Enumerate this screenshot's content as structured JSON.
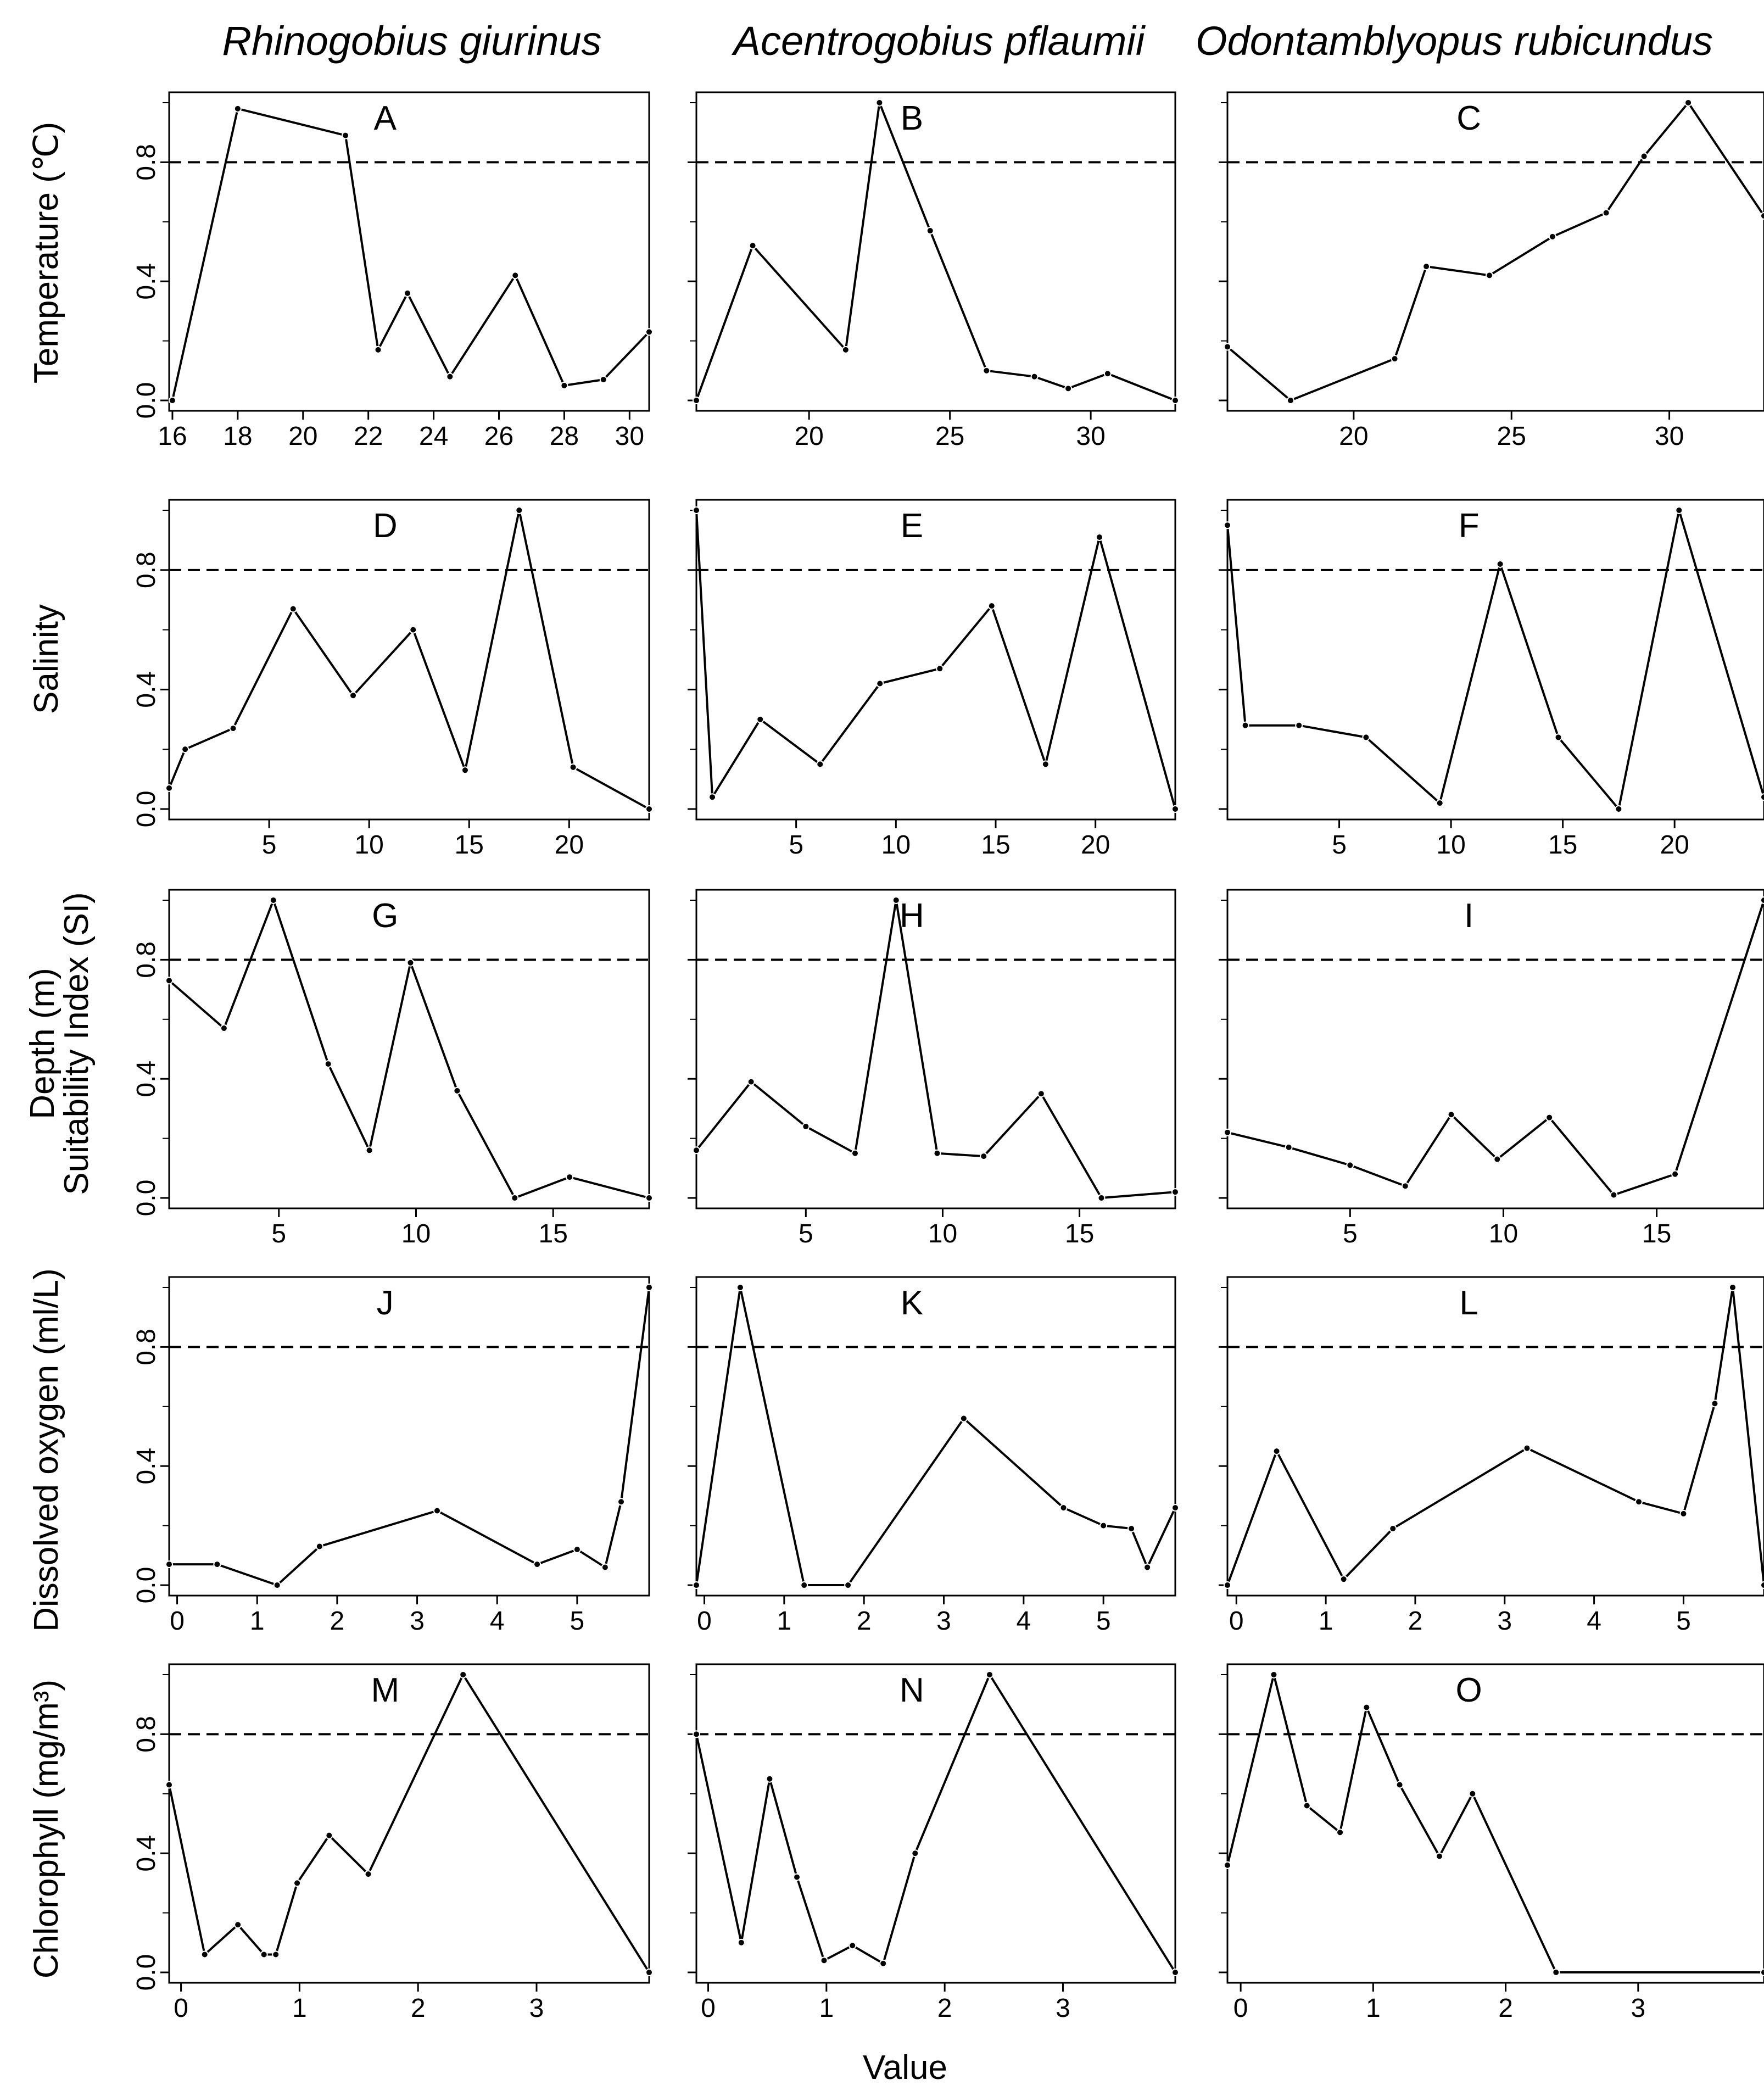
{
  "figure": {
    "column_titles": [
      "Rhinogobius giurinus",
      "Acentrogobius pflaumii",
      "Odontamblyopus rubicundus"
    ],
    "row_labels": [
      "Temperature (℃)",
      "Salinity",
      "Depth (m)",
      "Dissolved oxygen (ml/L)",
      "Chlorophyll (mg/m³)"
    ],
    "shared_ylabel": "Suitability Index (SI)",
    "shared_xlabel": "Value",
    "threshold": 0.8,
    "colors": {
      "line": "#000000",
      "axis": "#000000",
      "background": "#ffffff"
    }
  },
  "chart_data": [
    {
      "type": "line",
      "panel": "A",
      "row": "Temperature (℃)",
      "species": "Rhinogobius giurinus",
      "xlim": [
        15.9,
        30.6
      ],
      "ylim": [
        0,
        1
      ],
      "xticks": [
        16,
        18,
        20,
        22,
        24,
        26,
        28,
        30
      ],
      "yticks": [
        0.0,
        0.4,
        0.8
      ],
      "show_ylabels": true,
      "x": [
        16,
        18,
        21.3,
        22.3,
        23.2,
        24.5,
        26.5,
        28,
        29.2,
        30.6
      ],
      "y": [
        0,
        0.98,
        0.89,
        0.17,
        0.36,
        0.08,
        0.42,
        0.05,
        0.07,
        0.23
      ],
      "threshold": 0.8
    },
    {
      "type": "line",
      "panel": "B",
      "row": "Temperature (℃)",
      "species": "Acentrogobius pflaumii",
      "xlim": [
        16,
        33
      ],
      "ylim": [
        0,
        1
      ],
      "xticks": [
        20,
        25,
        30
      ],
      "yticks": [
        0.0,
        0.4,
        0.8
      ],
      "show_ylabels": false,
      "x": [
        16,
        18,
        21.3,
        22.5,
        24.3,
        26.3,
        28,
        29.2,
        30.6,
        33
      ],
      "y": [
        0,
        0.52,
        0.17,
        1.0,
        0.57,
        0.1,
        0.08,
        0.04,
        0.09,
        0
      ],
      "threshold": 0.8
    },
    {
      "type": "line",
      "panel": "C",
      "row": "Temperature (℃)",
      "species": "Odontamblyopus rubicundus",
      "xlim": [
        16,
        33
      ],
      "ylim": [
        0,
        1
      ],
      "xticks": [
        20,
        25,
        30
      ],
      "yticks": [
        0.0,
        0.4,
        0.8
      ],
      "show_ylabels": false,
      "x": [
        16,
        18,
        21.3,
        22.3,
        24.3,
        26.3,
        28,
        29.2,
        30.6,
        33
      ],
      "y": [
        0.18,
        0,
        0.14,
        0.45,
        0.42,
        0.55,
        0.63,
        0.82,
        1.0,
        0.62
      ],
      "threshold": 0.8
    },
    {
      "type": "line",
      "panel": "D",
      "row": "Salinity",
      "species": "Rhinogobius giurinus",
      "xlim": [
        0,
        24
      ],
      "ylim": [
        0,
        1
      ],
      "xticks": [
        5,
        10,
        15,
        20
      ],
      "yticks": [
        0.0,
        0.4,
        0.8
      ],
      "show_ylabels": true,
      "x": [
        0,
        0.8,
        3.2,
        6.2,
        9.2,
        12.2,
        14.8,
        17.5,
        20.2,
        24
      ],
      "y": [
        0.07,
        0.2,
        0.27,
        0.67,
        0.38,
        0.6,
        0.13,
        1.0,
        0.14,
        0
      ],
      "threshold": 0.8
    },
    {
      "type": "line",
      "panel": "E",
      "row": "Salinity",
      "species": "Acentrogobius pflaumii",
      "xlim": [
        0,
        24
      ],
      "ylim": [
        0,
        1
      ],
      "xticks": [
        5,
        10,
        15,
        20
      ],
      "yticks": [
        0.0,
        0.4,
        0.8
      ],
      "show_ylabels": false,
      "x": [
        0,
        0.8,
        3.2,
        6.2,
        9.2,
        12.2,
        14.8,
        17.5,
        20.2,
        24
      ],
      "y": [
        1.0,
        0.04,
        0.3,
        0.15,
        0.42,
        0.47,
        0.68,
        0.15,
        0.91,
        0
      ],
      "threshold": 0.8
    },
    {
      "type": "line",
      "panel": "F",
      "row": "Salinity",
      "species": "Odontamblyopus rubicundus",
      "xlim": [
        0,
        24
      ],
      "ylim": [
        0,
        1
      ],
      "xticks": [
        5,
        10,
        15,
        20
      ],
      "yticks": [
        0.0,
        0.4,
        0.8
      ],
      "show_ylabels": false,
      "x": [
        0,
        0.8,
        3.2,
        6.2,
        9.5,
        12.2,
        14.8,
        17.5,
        20.2,
        24
      ],
      "y": [
        0.95,
        0.28,
        0.28,
        0.24,
        0.02,
        0.82,
        0.24,
        0,
        1.0,
        0.04
      ],
      "threshold": 0.8
    },
    {
      "type": "line",
      "panel": "G",
      "row": "Depth (m)",
      "species": "Rhinogobius giurinus",
      "xlim": [
        1,
        18.5
      ],
      "ylim": [
        0,
        1
      ],
      "xticks": [
        5,
        10,
        15
      ],
      "yticks": [
        0.0,
        0.4,
        0.8
      ],
      "show_ylabels": true,
      "x": [
        1,
        3,
        4.8,
        6.8,
        8.3,
        9.8,
        11.5,
        13.6,
        15.6,
        18.5
      ],
      "y": [
        0.73,
        0.57,
        1.0,
        0.45,
        0.16,
        0.79,
        0.36,
        0,
        0.07,
        0
      ],
      "threshold": 0.8
    },
    {
      "type": "line",
      "panel": "H",
      "row": "Depth (m)",
      "species": "Acentrogobius pflaumii",
      "xlim": [
        1,
        18.5
      ],
      "ylim": [
        0,
        1
      ],
      "xticks": [
        5,
        10,
        15
      ],
      "yticks": [
        0.0,
        0.4,
        0.8
      ],
      "show_ylabels": false,
      "x": [
        1,
        3,
        5,
        6.8,
        8.3,
        9.8,
        11.5,
        13.6,
        15.8,
        18.5
      ],
      "y": [
        0.16,
        0.39,
        0.24,
        0.15,
        1.0,
        0.15,
        0.14,
        0.35,
        0,
        0.02
      ],
      "threshold": 0.8
    },
    {
      "type": "line",
      "panel": "I",
      "row": "Depth (m)",
      "species": "Odontamblyopus rubicundus",
      "xlim": [
        1,
        18.5
      ],
      "ylim": [
        0,
        1
      ],
      "xticks": [
        5,
        10,
        15
      ],
      "yticks": [
        0.0,
        0.4,
        0.8
      ],
      "show_ylabels": false,
      "x": [
        1,
        3,
        5,
        6.8,
        8.3,
        9.8,
        11.5,
        13.6,
        15.6,
        18.5
      ],
      "y": [
        0.22,
        0.17,
        0.11,
        0.04,
        0.28,
        0.13,
        0.27,
        0.01,
        0.08,
        1.0
      ],
      "threshold": 0.8
    },
    {
      "type": "line",
      "panel": "J",
      "row": "Dissolved oxygen (ml/L)",
      "species": "Rhinogobius giurinus",
      "xlim": [
        -0.1,
        5.9
      ],
      "ylim": [
        0,
        1
      ],
      "xticks": [
        0,
        1,
        2,
        3,
        4,
        5
      ],
      "yticks": [
        0.0,
        0.4,
        0.8
      ],
      "show_ylabels": true,
      "x": [
        -0.1,
        0.5,
        1.25,
        1.78,
        3.25,
        4.5,
        5,
        5.35,
        5.55,
        5.9
      ],
      "y": [
        0.07,
        0.07,
        0,
        0.13,
        0.25,
        0.07,
        0.12,
        0.06,
        0.28,
        1.0
      ],
      "threshold": 0.8
    },
    {
      "type": "line",
      "panel": "K",
      "row": "Dissolved oxygen (ml/L)",
      "species": "Acentrogobius pflaumii",
      "xlim": [
        -0.1,
        5.9
      ],
      "ylim": [
        0,
        1
      ],
      "xticks": [
        0,
        1,
        2,
        3,
        4,
        5
      ],
      "yticks": [
        0.0,
        0.4,
        0.8
      ],
      "show_ylabels": false,
      "x": [
        -0.1,
        0.45,
        1.25,
        1.8,
        3.25,
        4.5,
        5,
        5.35,
        5.55,
        5.9
      ],
      "y": [
        0,
        1.0,
        0,
        0,
        0.56,
        0.26,
        0.2,
        0.19,
        0.06,
        0.26
      ],
      "threshold": 0.8
    },
    {
      "type": "line",
      "panel": "L",
      "row": "Dissolved oxygen (ml/L)",
      "species": "Odontamblyopus rubicundus",
      "xlim": [
        -0.1,
        5.9
      ],
      "ylim": [
        0,
        1
      ],
      "xticks": [
        0,
        1,
        2,
        3,
        4,
        5
      ],
      "yticks": [
        0.0,
        0.4,
        0.8
      ],
      "show_ylabels": false,
      "x": [
        -0.1,
        0.45,
        1.2,
        1.75,
        3.25,
        4.5,
        5,
        5.35,
        5.55,
        5.9
      ],
      "y": [
        0,
        0.45,
        0.02,
        0.19,
        0.46,
        0.28,
        0.24,
        0.61,
        1.0,
        0
      ],
      "threshold": 0.8
    },
    {
      "type": "line",
      "panel": "M",
      "row": "Chlorophyll (mg/m³)",
      "species": "Rhinogobius giurinus",
      "xlim": [
        -0.1,
        3.95
      ],
      "ylim": [
        0,
        1
      ],
      "xticks": [
        0,
        1,
        2,
        3
      ],
      "yticks": [
        0.0,
        0.4,
        0.8
      ],
      "show_ylabels": true,
      "x": [
        -0.1,
        0.2,
        0.48,
        0.7,
        0.8,
        0.98,
        1.25,
        1.58,
        2.38,
        3.95
      ],
      "y": [
        0.63,
        0.06,
        0.16,
        0.06,
        0.06,
        0.3,
        0.46,
        0.33,
        1.0,
        0
      ],
      "threshold": 0.8
    },
    {
      "type": "line",
      "panel": "N",
      "row": "Chlorophyll (mg/m³)",
      "species": "Acentrogobius pflaumii",
      "xlim": [
        -0.1,
        3.95
      ],
      "ylim": [
        0,
        1
      ],
      "xticks": [
        0,
        1,
        2,
        3
      ],
      "yticks": [
        0.0,
        0.4,
        0.8
      ],
      "show_ylabels": false,
      "x": [
        -0.1,
        0.28,
        0.52,
        0.75,
        0.98,
        1.22,
        1.48,
        1.75,
        2.38,
        3.95
      ],
      "y": [
        0.8,
        0.1,
        0.65,
        0.32,
        0.04,
        0.09,
        0.03,
        0.4,
        1.0,
        0
      ],
      "threshold": 0.8
    },
    {
      "type": "line",
      "panel": "O",
      "row": "Chlorophyll (mg/m³)",
      "species": "Odontamblyopus rubicundus",
      "xlim": [
        -0.1,
        3.95
      ],
      "ylim": [
        0,
        1
      ],
      "xticks": [
        0,
        1,
        2,
        3
      ],
      "yticks": [
        0.0,
        0.4,
        0.8
      ],
      "show_ylabels": false,
      "x": [
        -0.1,
        0.25,
        0.5,
        0.75,
        0.95,
        1.2,
        1.5,
        1.75,
        2.38,
        3.95
      ],
      "y": [
        0.36,
        1.0,
        0.56,
        0.47,
        0.89,
        0.63,
        0.39,
        0.6,
        0,
        0
      ],
      "threshold": 0.8
    }
  ]
}
